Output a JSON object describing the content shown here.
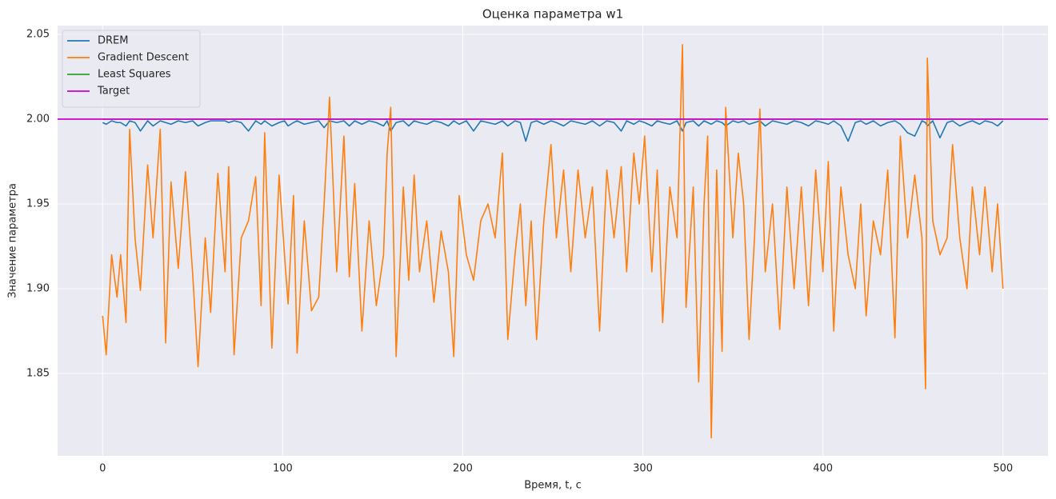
{
  "chart_data": {
    "type": "line",
    "title": "Оценка параметра w1",
    "x_label": "Время, t, с",
    "y_label": "Значение параметра",
    "xlim": [
      -25,
      525
    ],
    "ylim": [
      1.8014,
      2.0552
    ],
    "xticks": [
      0,
      100,
      200,
      300,
      400,
      500
    ],
    "yticks": [
      1.85,
      {
        "value": 1.9,
        "label": "1.90"
      },
      1.95,
      {
        "value": 2.0,
        "label": "2.00"
      },
      2.05
    ],
    "grid": true,
    "legend": "upper left",
    "x": [
      0,
      2,
      5,
      8,
      10,
      13,
      15,
      18,
      21,
      25,
      28,
      32,
      35,
      38,
      42,
      46,
      50,
      53,
      57,
      60,
      64,
      68,
      70,
      73,
      77,
      81,
      85,
      88,
      90,
      94,
      98,
      101,
      103,
      106,
      108,
      112,
      116,
      120,
      123,
      126,
      130,
      134,
      137,
      140,
      144,
      148,
      152,
      156,
      158,
      160,
      163,
      167,
      170,
      173,
      176,
      180,
      184,
      188,
      192,
      195,
      198,
      202,
      206,
      210,
      214,
      218,
      222,
      225,
      229,
      232,
      235,
      238,
      241,
      245,
      249,
      252,
      256,
      260,
      264,
      268,
      272,
      276,
      280,
      284,
      288,
      291,
      295,
      298,
      301,
      305,
      308,
      311,
      315,
      319,
      322,
      324,
      328,
      331,
      334,
      336,
      338,
      341,
      344,
      346,
      350,
      353,
      356,
      359,
      362,
      365,
      368,
      372,
      376,
      380,
      384,
      388,
      392,
      396,
      400,
      403,
      406,
      410,
      414,
      418,
      421,
      424,
      428,
      432,
      436,
      440,
      443,
      447,
      451,
      455,
      457,
      458,
      461,
      465,
      469,
      472,
      476,
      480,
      483,
      487,
      490,
      494,
      497,
      500
    ],
    "series": [
      {
        "name": "DREM",
        "color": "#1f77b4",
        "values": [
          1.998,
          1.997,
          1.999,
          1.998,
          1.998,
          1.996,
          1.999,
          1.998,
          1.993,
          1.999,
          1.996,
          1.999,
          1.998,
          1.997,
          1.999,
          1.998,
          1.999,
          1.996,
          1.998,
          1.999,
          1.999,
          1.999,
          1.998,
          1.999,
          1.998,
          1.993,
          1.999,
          1.997,
          1.999,
          1.996,
          1.998,
          1.999,
          1.996,
          1.998,
          1.999,
          1.997,
          1.998,
          1.999,
          1.995,
          1.999,
          1.998,
          1.999,
          1.996,
          1.999,
          1.997,
          1.999,
          1.998,
          1.996,
          1.999,
          1.993,
          1.998,
          1.999,
          1.996,
          1.999,
          1.998,
          1.997,
          1.999,
          1.998,
          1.996,
          1.999,
          1.997,
          1.999,
          1.993,
          1.999,
          1.998,
          1.997,
          1.999,
          1.996,
          1.999,
          1.998,
          1.987,
          1.998,
          1.999,
          1.997,
          1.999,
          1.998,
          1.996,
          1.999,
          1.998,
          1.997,
          1.999,
          1.996,
          1.999,
          1.998,
          1.993,
          1.999,
          1.997,
          1.999,
          1.998,
          1.996,
          1.999,
          1.998,
          1.997,
          1.999,
          1.993,
          1.998,
          1.999,
          1.996,
          1.999,
          1.998,
          1.997,
          1.999,
          1.998,
          1.996,
          1.999,
          1.998,
          1.999,
          1.997,
          1.998,
          1.999,
          1.996,
          1.999,
          1.998,
          1.997,
          1.999,
          1.998,
          1.996,
          1.999,
          1.998,
          1.997,
          1.999,
          1.996,
          1.987,
          1.998,
          1.999,
          1.997,
          1.999,
          1.996,
          1.998,
          1.999,
          1.997,
          1.992,
          1.99,
          1.999,
          1.998,
          1.996,
          1.999,
          1.989,
          1.998,
          1.999,
          1.996,
          1.998,
          1.999,
          1.997,
          1.999,
          1.998,
          1.996,
          1.999
        ]
      },
      {
        "name": "Gradient Descent",
        "color": "#ff7f0e",
        "values": [
          1.884,
          1.861,
          1.92,
          1.895,
          1.92,
          1.88,
          1.994,
          1.93,
          1.899,
          1.973,
          1.93,
          1.994,
          1.868,
          1.963,
          1.912,
          1.969,
          1.909,
          1.854,
          1.93,
          1.886,
          1.968,
          1.91,
          1.972,
          1.861,
          1.93,
          1.94,
          1.966,
          1.89,
          1.992,
          1.865,
          1.967,
          1.92,
          1.891,
          1.955,
          1.862,
          1.94,
          1.887,
          1.895,
          1.95,
          2.013,
          1.91,
          1.99,
          1.907,
          1.962,
          1.875,
          1.94,
          1.89,
          1.92,
          1.98,
          2.007,
          1.86,
          1.96,
          1.905,
          1.967,
          1.91,
          1.94,
          1.892,
          1.934,
          1.91,
          1.86,
          1.955,
          1.92,
          1.905,
          1.94,
          1.95,
          1.93,
          1.98,
          1.87,
          1.92,
          1.95,
          1.89,
          1.94,
          1.87,
          1.94,
          1.985,
          1.93,
          1.97,
          1.91,
          1.97,
          1.93,
          1.96,
          1.875,
          1.97,
          1.93,
          1.972,
          1.91,
          1.98,
          1.95,
          1.99,
          1.91,
          1.97,
          1.88,
          1.96,
          1.93,
          2.044,
          1.889,
          1.96,
          1.845,
          1.95,
          1.99,
          1.812,
          1.97,
          1.863,
          2.007,
          1.93,
          1.98,
          1.95,
          1.87,
          1.93,
          2.006,
          1.91,
          1.95,
          1.876,
          1.96,
          1.9,
          1.96,
          1.89,
          1.97,
          1.91,
          1.975,
          1.875,
          1.96,
          1.92,
          1.9,
          1.95,
          1.884,
          1.94,
          1.92,
          1.97,
          1.871,
          1.99,
          1.93,
          1.967,
          1.93,
          1.841,
          2.036,
          1.94,
          1.92,
          1.93,
          1.985,
          1.93,
          1.9,
          1.96,
          1.92,
          1.96,
          1.91,
          1.95,
          1.9
        ]
      },
      {
        "name": "Least Squares",
        "color": "#2ca02c",
        "values": [
          2,
          2,
          2,
          2,
          2,
          2,
          2,
          2,
          2,
          2,
          2,
          2,
          2,
          2,
          2,
          2,
          2,
          2,
          2,
          2,
          2,
          2,
          2,
          2,
          2,
          2,
          2,
          2,
          2,
          2,
          2,
          2,
          2,
          2,
          2,
          2,
          2,
          2,
          2,
          2,
          2,
          2,
          2,
          2,
          2,
          2,
          2,
          2,
          2,
          2,
          2,
          2,
          2,
          2,
          2,
          2,
          2,
          2,
          2,
          2,
          2,
          2,
          2,
          2,
          2,
          2,
          2,
          2,
          2,
          2,
          2,
          2,
          2,
          2,
          2,
          2,
          2,
          2,
          2,
          2,
          2,
          2,
          2,
          2,
          2,
          2,
          2,
          2,
          2,
          2,
          2,
          2,
          2,
          2,
          2,
          2,
          2,
          2,
          2,
          2,
          2,
          2,
          2,
          2,
          2,
          2,
          2,
          2,
          2,
          2,
          2,
          2,
          2,
          2,
          2,
          2,
          2,
          2,
          2,
          2,
          2,
          2,
          2,
          2,
          2,
          2,
          2,
          2,
          2,
          2,
          2,
          2,
          2,
          2,
          2,
          2,
          2,
          2,
          2,
          2,
          2,
          2,
          2,
          2,
          2,
          2,
          2,
          2
        ]
      },
      {
        "name": "Target",
        "color": "#cc00cc",
        "value": 2
      }
    ]
  }
}
